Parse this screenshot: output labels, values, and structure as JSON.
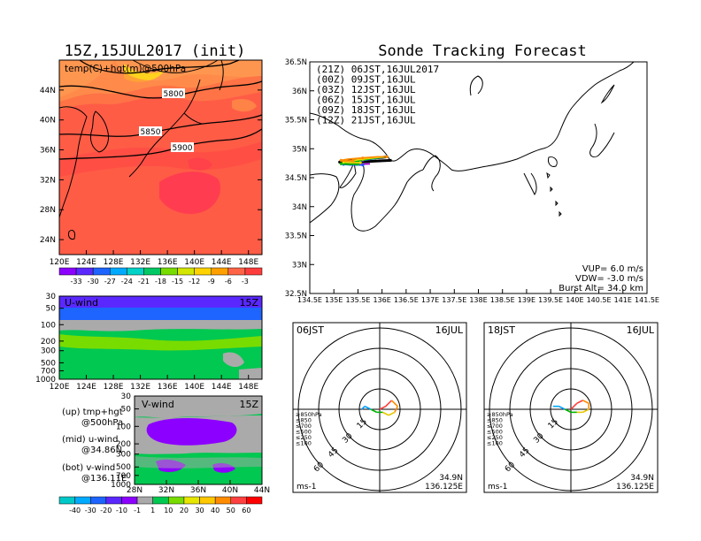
{
  "left_title": "15Z,15JUL2017 (init)",
  "right_title": "Sonde Tracking Forecast",
  "map500": {
    "label": "temp(C)+hgt(m)@500hPa",
    "contours": [
      "5800",
      "5850",
      "5900"
    ],
    "yticks": [
      "44N",
      "40N",
      "36N",
      "32N",
      "28N",
      "24N"
    ],
    "xticks": [
      "120E",
      "124E",
      "128E",
      "132E",
      "136E",
      "140E",
      "144E",
      "148E"
    ]
  },
  "temp_colorbar": {
    "labels": [
      "-33",
      "-30",
      "-27",
      "-24",
      "-21",
      "-18",
      "-15",
      "-12",
      "-9",
      "-6",
      "-3"
    ],
    "colors": [
      "#8c00ff",
      "#5a28ff",
      "#1e64ff",
      "#00aaff",
      "#00d2c8",
      "#00c864",
      "#78dc00",
      "#d2e600",
      "#ffd200",
      "#ffa000",
      "#ff6446",
      "#ff3c3c"
    ]
  },
  "uwind": {
    "label": "U-wind",
    "time": "15Z",
    "yticks": [
      "30",
      "50",
      "100",
      "200",
      "300",
      "500",
      "700",
      "1000"
    ],
    "xticks": [
      "120E",
      "124E",
      "128E",
      "132E",
      "136E",
      "140E",
      "144E",
      "148E"
    ]
  },
  "vwind": {
    "label": "V-wind",
    "time": "15Z",
    "yticks": [
      "30",
      "50",
      "100",
      "200",
      "300",
      "500",
      "700",
      "1000"
    ],
    "xticks": [
      "28N",
      "32N",
      "36N",
      "40N",
      "44N"
    ]
  },
  "notes": {
    "up1": "(up) tmp+hgt",
    "up2": "@500hPa",
    "mid1": "(mid) u-wind",
    "mid2": "@34.86N",
    "bot1": "(bot) v-wind",
    "bot2": "@136.11E"
  },
  "wind_colorbar": {
    "labels": [
      "-40",
      "-30",
      "-20",
      "-10",
      "-1",
      "1",
      "10",
      "20",
      "30",
      "40",
      "50",
      "60"
    ],
    "colors": [
      "#00c8c8",
      "#00aaff",
      "#1e64ff",
      "#5a28ff",
      "#8c00ff",
      "#aaaaaa",
      "#00c850",
      "#78dc00",
      "#e6e600",
      "#ffc800",
      "#ff8c00",
      "#ff4040",
      "#ff0000"
    ]
  },
  "track_map": {
    "legend": [
      {
        "text": "(21Z)  06JST,16JUL2017",
        "color": "#000000"
      },
      {
        "text": "(00Z)  09JST,16JUL",
        "color": "#a000c8"
      },
      {
        "text": "(03Z)  12JST,16JUL",
        "color": "#1e50ff"
      },
      {
        "text": "(06Z)  15JST,16JUL",
        "color": "#00b400"
      },
      {
        "text": "(09Z)  18JST,16JUL",
        "color": "#e6dc00"
      },
      {
        "text": "(12Z)  21JST,16JUL",
        "color": "#ff8c00"
      }
    ],
    "yticks": [
      "36.5N",
      "36N",
      "35.5N",
      "35N",
      "34.5N",
      "34N",
      "33.5N",
      "33N",
      "32.5N"
    ],
    "xticks": [
      "134.5E",
      "135E",
      "135.5E",
      "136E",
      "136.5E",
      "137E",
      "137.5E",
      "138E",
      "138.5E",
      "139E",
      "139.5E",
      "140E",
      "140.5E",
      "141E",
      "141.5E"
    ],
    "info": [
      "VUP=  6.0 m/s",
      "VDW= -3.0 m/s",
      "Burst Alt=  34.0 km"
    ]
  },
  "hodo_left": {
    "time": "06JST",
    "date": "16JUL",
    "rings": [
      "15",
      "30",
      "45",
      "60"
    ],
    "levels": [
      {
        "text": "≥850hPa",
        "color": "#ff4040"
      },
      {
        "text": "≤850",
        "color": "#ff8c00"
      },
      {
        "text": "≤700",
        "color": "#e6c800"
      },
      {
        "text": "≤500",
        "color": "#00b400"
      },
      {
        "text": "≤250",
        "color": "#00a0ff"
      },
      {
        "text": "≤100",
        "color": "#6428ff"
      }
    ],
    "unit": "ms-1",
    "lat": "34.9N",
    "lon": "136.125E"
  },
  "hodo_right": {
    "time": "18JST",
    "date": "16JUL",
    "rings": [
      "15",
      "30",
      "45",
      "60"
    ],
    "levels": [
      {
        "text": "≥850hPa",
        "color": "#ff4040"
      },
      {
        "text": "≤850",
        "color": "#ff8c00"
      },
      {
        "text": "≤700",
        "color": "#e6c800"
      },
      {
        "text": "≤500",
        "color": "#00b400"
      },
      {
        "text": "≤250",
        "color": "#00a0ff"
      },
      {
        "text": "≤100",
        "color": "#6428ff"
      }
    ],
    "unit": "ms-1",
    "lat": "34.9N",
    "lon": "136.125E"
  },
  "chart_data": [
    {
      "type": "heatmap",
      "title": "15Z,15JUL2017 (init)",
      "subtitle": "temp(C)+hgt(m)@500hPa",
      "contour_labels": [
        5800,
        5850,
        5900
      ],
      "xlim": [
        120,
        150
      ],
      "ylim": [
        22,
        48
      ],
      "colorbar": [
        -33,
        -30,
        -27,
        -24,
        -21,
        -18,
        -15,
        -12,
        -9,
        -6,
        -3
      ]
    },
    {
      "type": "heatmap",
      "title": "U-wind",
      "note": "15Z",
      "xlim": [
        120,
        150
      ],
      "y_levels_hPa": [
        30,
        50,
        100,
        200,
        300,
        500,
        700,
        1000
      ]
    },
    {
      "type": "heatmap",
      "title": "V-wind",
      "note": "15Z",
      "xlim": [
        28,
        44
      ],
      "y_levels_hPa": [
        30,
        50,
        100,
        200,
        300,
        500,
        700,
        1000
      ],
      "colorbar": [
        -40,
        -30,
        -20,
        -10,
        -1,
        1,
        10,
        20,
        30,
        40,
        50,
        60
      ]
    },
    {
      "type": "line",
      "title": "Sonde Tracking Forecast",
      "xlim": [
        134.5,
        141.5
      ],
      "ylim": [
        32.5,
        36.5
      ],
      "series": [
        {
          "name": "(21Z)  06JST,16JUL2017",
          "x": [
            136.1,
            136.0,
            135.85,
            135.6,
            135.3,
            135.15,
            135.12,
            135.2,
            135.45,
            135.7,
            135.95,
            136.2
          ],
          "y": [
            34.86,
            34.85,
            34.84,
            34.82,
            34.8,
            34.78,
            34.77,
            34.76,
            34.77,
            34.78,
            34.79,
            34.8
          ]
        },
        {
          "name": "(00Z)  09JST,16JUL",
          "x": [
            136.1,
            135.9,
            135.6,
            135.35,
            135.2,
            135.25,
            135.5,
            135.75
          ],
          "y": [
            34.86,
            34.84,
            34.8,
            34.77,
            34.75,
            34.74,
            34.73,
            34.74
          ]
        },
        {
          "name": "(03Z)  12JST,16JUL",
          "x": [
            136.1,
            135.85,
            135.55,
            135.3,
            135.2,
            135.35,
            135.6
          ],
          "y": [
            34.86,
            34.83,
            34.79,
            34.76,
            34.73,
            34.72,
            34.72
          ]
        },
        {
          "name": "(06Z)  15JST,16JUL",
          "x": [
            136.1,
            135.8,
            135.5,
            135.25,
            135.15,
            135.3,
            135.5
          ],
          "y": [
            34.86,
            34.83,
            34.79,
            34.76,
            34.74,
            34.73,
            34.73
          ]
        },
        {
          "name": "(09Z)  18JST,16JUL",
          "x": [
            136.1,
            135.9,
            135.6,
            135.35,
            135.2,
            135.35,
            135.55
          ],
          "y": [
            34.86,
            34.85,
            34.82,
            34.79,
            34.77,
            34.76,
            34.76
          ]
        },
        {
          "name": "(12Z)  21JST,16JUL",
          "x": [
            136.1,
            135.9,
            135.6,
            135.3,
            135.15,
            135.2,
            135.4
          ],
          "y": [
            34.86,
            34.86,
            34.84,
            34.82,
            34.8,
            34.79,
            34.79
          ]
        }
      ]
    },
    {
      "type": "line",
      "title": "06JST 16JUL hodograph",
      "rings_ms": [
        15,
        30,
        45,
        60
      ],
      "points_uv": [
        [
          0,
          0
        ],
        [
          2,
          1
        ],
        [
          4,
          3
        ],
        [
          6,
          1
        ],
        [
          5,
          -1
        ],
        [
          3,
          -2
        ],
        [
          1,
          -1
        ],
        [
          -1,
          -1
        ],
        [
          -3,
          0
        ],
        [
          -5,
          1
        ],
        [
          -6,
          0
        ]
      ]
    },
    {
      "type": "line",
      "title": "18JST 16JUL hodograph",
      "rings_ms": [
        15,
        30,
        45,
        60
      ],
      "points_uv": [
        [
          0,
          0
        ],
        [
          2,
          2
        ],
        [
          4,
          3
        ],
        [
          6,
          2
        ],
        [
          6,
          0
        ],
        [
          4,
          -1
        ],
        [
          2,
          -1
        ],
        [
          0,
          -1
        ],
        [
          -2,
          0
        ],
        [
          -4,
          1
        ],
        [
          -6,
          1
        ]
      ]
    }
  ]
}
